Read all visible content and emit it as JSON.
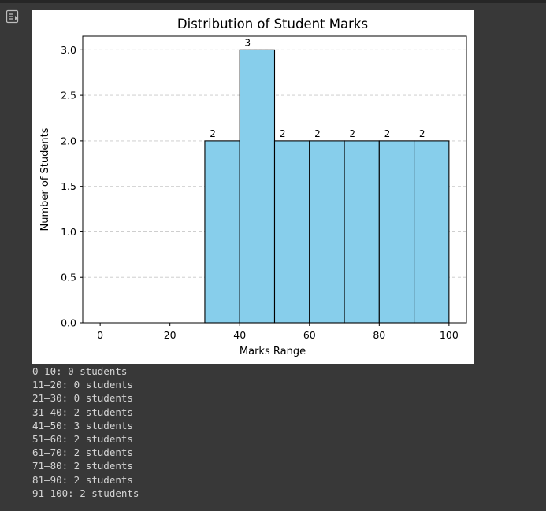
{
  "colors": {
    "page_background": "#383838",
    "bar_fill": "#87ceeb",
    "bar_edge": "#000000",
    "grid": "#c8c8c8",
    "output_text": "#d4d4d4",
    "toggle_icon": "#bdbdbd"
  },
  "cell": {
    "output_toggle_icon": "output-toggle-icon"
  },
  "chart_data": {
    "type": "bar",
    "title": "Distribution of Student Marks",
    "xlabel": "Marks Range",
    "ylabel": "Number of Students",
    "xlim": [
      -5,
      105
    ],
    "ylim": [
      0,
      3.15
    ],
    "x_ticks": [
      0,
      20,
      40,
      60,
      80,
      100
    ],
    "y_ticks": [
      0.0,
      0.5,
      1.0,
      1.5,
      2.0,
      2.5,
      3.0
    ],
    "y_tick_labels": [
      "0.0",
      "0.5",
      "1.0",
      "1.5",
      "2.0",
      "2.5",
      "3.0"
    ],
    "grid": "y-axis dashed",
    "bins": [
      {
        "start": 0,
        "end": 10,
        "value": 0
      },
      {
        "start": 10,
        "end": 20,
        "value": 0
      },
      {
        "start": 20,
        "end": 30,
        "value": 0
      },
      {
        "start": 30,
        "end": 40,
        "value": 2
      },
      {
        "start": 40,
        "end": 50,
        "value": 3
      },
      {
        "start": 50,
        "end": 60,
        "value": 2
      },
      {
        "start": 60,
        "end": 70,
        "value": 2
      },
      {
        "start": 70,
        "end": 80,
        "value": 2
      },
      {
        "start": 80,
        "end": 90,
        "value": 2
      },
      {
        "start": 90,
        "end": 100,
        "value": 2
      }
    ],
    "data_labels": [
      "2",
      "3",
      "2",
      "2",
      "2",
      "2",
      "2"
    ]
  },
  "output_lines": [
    "0–10: 0 students",
    "11–20: 0 students",
    "21–30: 0 students",
    "31–40: 2 students",
    "41–50: 3 students",
    "51–60: 2 students",
    "61–70: 2 students",
    "71–80: 2 students",
    "81–90: 2 students",
    "91–100: 2 students"
  ]
}
